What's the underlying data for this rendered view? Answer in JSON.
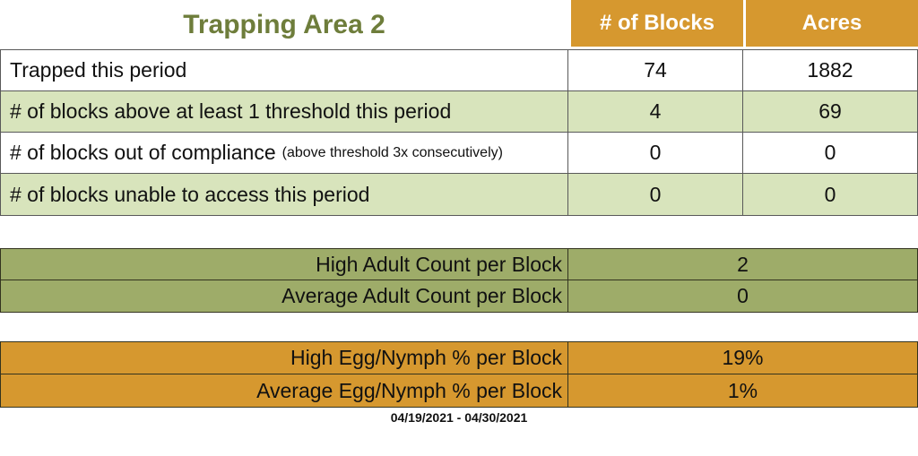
{
  "title": "Trapping Area 2",
  "colors": {
    "accent_orange": "#d6982f",
    "light_green": "#d8e4bc",
    "olive_green": "#9eac69",
    "title_text_green": "#6e7d3b",
    "border_gray": "#595959",
    "header_text": "#ffffff"
  },
  "main_table": {
    "columns": [
      "# of Blocks",
      "Acres"
    ],
    "rows": [
      {
        "label": "Trapped this period",
        "blocks": "74",
        "acres": "1882"
      },
      {
        "label": "# of blocks above at least 1 threshold this period",
        "blocks": "4",
        "acres": "69"
      },
      {
        "label": "# of blocks out of compliance",
        "note": "(above threshold 3x consecutively)",
        "blocks": "0",
        "acres": "0"
      },
      {
        "label": "# of blocks unable to access this period",
        "blocks": "0",
        "acres": "0"
      }
    ]
  },
  "adult_section": {
    "rows": [
      {
        "label": "High Adult Count per Block",
        "value": "2"
      },
      {
        "label": "Average Adult Count per Block",
        "value": "0"
      }
    ]
  },
  "egg_section": {
    "rows": [
      {
        "label": "High Egg/Nymph % per Block",
        "value": "19%"
      },
      {
        "label": "Average Egg/Nymph % per Block",
        "value": "1%"
      }
    ]
  },
  "footer": {
    "date_range": "04/19/2021 - 04/30/2021"
  }
}
